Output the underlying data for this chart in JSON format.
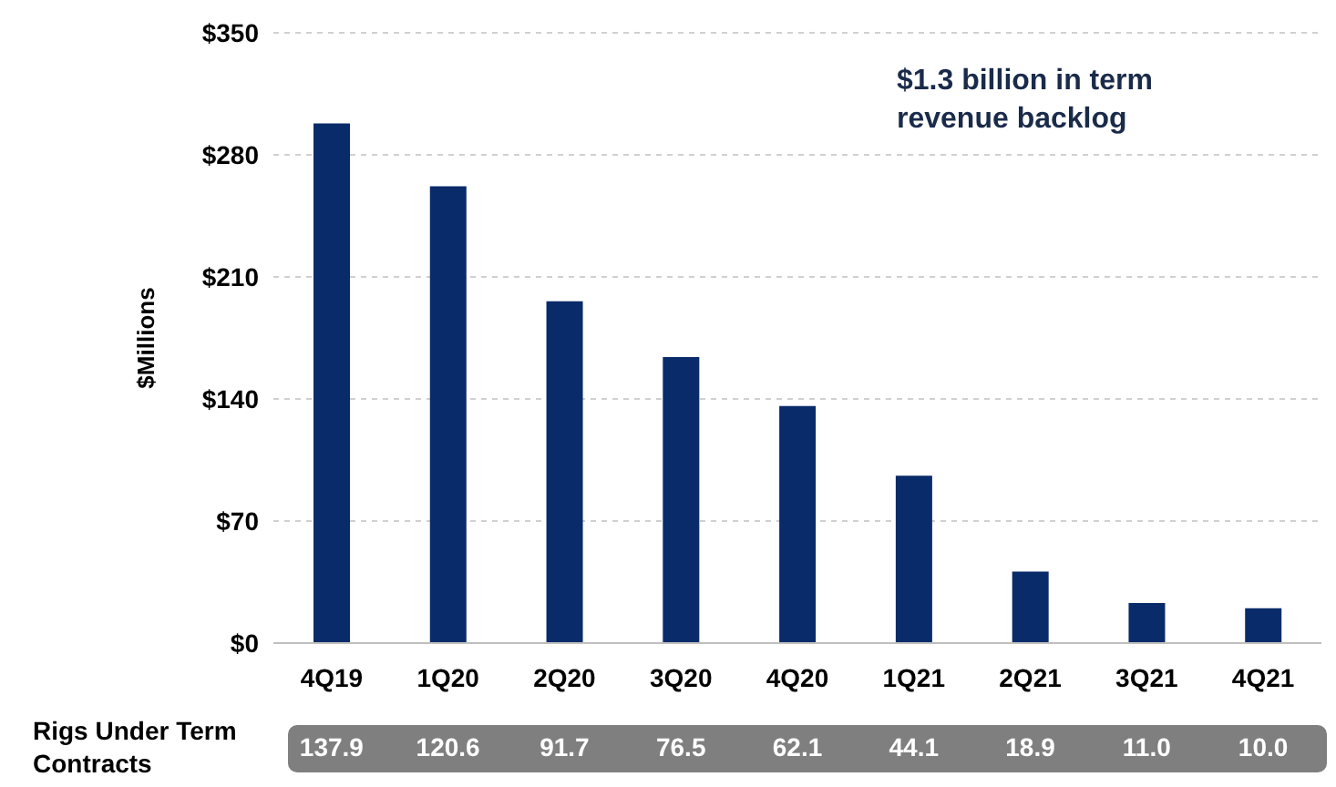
{
  "chart_data": {
    "type": "bar",
    "ylabel": "$Millions",
    "categories": [
      "4Q19",
      "1Q20",
      "2Q20",
      "3Q20",
      "4Q20",
      "1Q21",
      "2Q21",
      "3Q21",
      "4Q21"
    ],
    "values": [
      298,
      262,
      196,
      164,
      136,
      96,
      41,
      23,
      20
    ],
    "color": "#0a2b69",
    "ylim": [
      0,
      350
    ],
    "yticks": [
      {
        "value": 0,
        "label": "$0"
      },
      {
        "value": 70,
        "label": "$70"
      },
      {
        "value": 140,
        "label": "$140"
      },
      {
        "value": 210,
        "label": "$210"
      },
      {
        "value": 280,
        "label": "$280"
      },
      {
        "value": 350,
        "label": "$350"
      }
    ],
    "grid": "y",
    "annotations": [
      "$1.3 billion in term revenue backlog",
      "Rigs Under Term Contracts",
      "137.9",
      "120.6",
      "91.7",
      "76.5",
      "62.1",
      "44.1",
      "18.9",
      "11.0",
      "10.0"
    ]
  }
}
